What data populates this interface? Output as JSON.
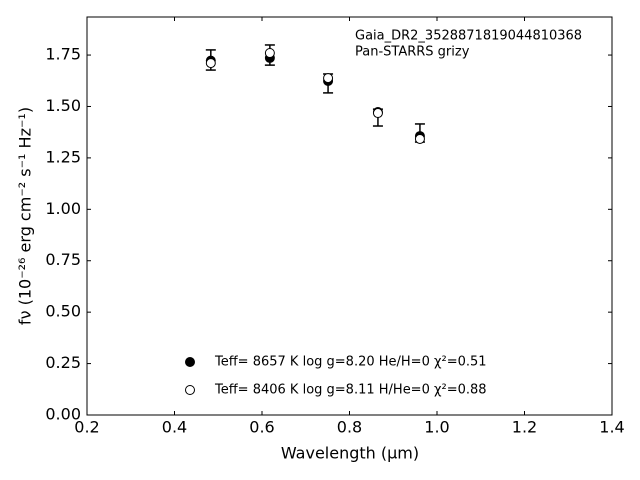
{
  "chart_data": {
    "type": "scatter",
    "annotations": [
      "Gaia_DR2_3528871819044810368",
      "Pan-STARRS grizy"
    ],
    "xlabel": "Wavelength (μm)",
    "ylabel": "fν (10⁻²⁶ erg cm⁻² s⁻¹ Hz⁻¹)",
    "x": [
      0.483,
      0.618,
      0.751,
      0.865,
      0.961
    ],
    "observed": {
      "color": "#000000",
      "values": [
        1.726,
        1.75,
        1.612,
        1.446,
        1.371
      ],
      "errors": [
        0.049,
        0.049,
        0.046,
        0.041,
        0.044
      ]
    },
    "series": [
      {
        "name": "Teff=  8657 K  log g=8.20  He/H=0  χ²=0.51",
        "color": "#000000",
        "marker": "filled",
        "values": [
          1.723,
          1.736,
          1.624,
          1.473,
          1.356
        ]
      },
      {
        "name": "Teff=  8406 K  log g=8.11  H/He=0  χ²=0.88",
        "color": "#000000",
        "marker": "open",
        "values": [
          1.711,
          1.76,
          1.638,
          1.468,
          1.342
        ]
      }
    ],
    "xlim": [
      0.2,
      1.4
    ],
    "xticks": [
      0.2,
      0.4,
      0.6,
      0.8,
      {
        "value": 1,
        "label": "1.0"
      },
      1.2,
      1.4
    ],
    "ylim": [
      0,
      1.935
    ],
    "yticks": [
      {
        "value": 0,
        "label": "0.00"
      },
      {
        "value": 0.25,
        "label": "0.25"
      },
      {
        "value": 0.5,
        "label": "0.50"
      },
      {
        "value": 0.75,
        "label": "0.75"
      },
      {
        "value": 1,
        "label": "1.00"
      },
      {
        "value": 1.25,
        "label": "1.25"
      },
      {
        "value": 1.5,
        "label": "1.50"
      },
      {
        "value": 1.75,
        "label": "1.75"
      }
    ],
    "legend": "lower center",
    "grid": false
  }
}
